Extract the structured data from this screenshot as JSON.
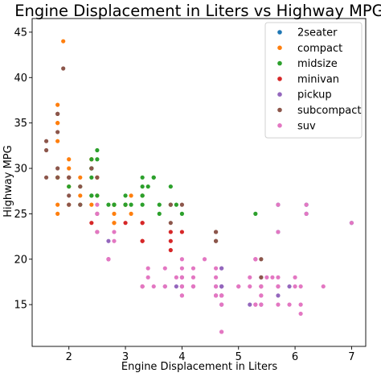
{
  "chart_data": {
    "type": "scatter",
    "title": "Engine Displacement in Liters vs Highway MPG",
    "xlabel": "Engine Displacement in Liters",
    "ylabel": "Highway MPG",
    "xlim": [
      1.35,
      7.25
    ],
    "ylim": [
      10.4,
      46.5
    ],
    "xticks": [
      "2",
      "3",
      "4",
      "5",
      "6",
      "7"
    ],
    "xtick_values": [
      2,
      3,
      4,
      5,
      6,
      7
    ],
    "yticks": [
      "15",
      "20",
      "25",
      "30",
      "35",
      "40",
      "45"
    ],
    "ytick_values": [
      15,
      20,
      25,
      30,
      35,
      40,
      45
    ],
    "grid": false,
    "legend_position": "top-right",
    "series": [
      {
        "name": "2seater",
        "color": "#1f77b4",
        "points": [
          [
            5.7,
            26
          ],
          [
            5.7,
            23
          ],
          [
            6.2,
            26
          ],
          [
            6.2,
            25
          ],
          [
            7.0,
            24
          ]
        ]
      },
      {
        "name": "compact",
        "color": "#ff7f0e",
        "points": [
          [
            1.8,
            29
          ],
          [
            1.8,
            29
          ],
          [
            2.0,
            31
          ],
          [
            2.0,
            30
          ],
          [
            2.8,
            26
          ],
          [
            2.8,
            26
          ],
          [
            3.1,
            27
          ],
          [
            1.8,
            26
          ],
          [
            1.8,
            25
          ],
          [
            2.0,
            28
          ],
          [
            2.0,
            29
          ],
          [
            2.8,
            25
          ],
          [
            3.1,
            25
          ],
          [
            2.2,
            27
          ],
          [
            2.2,
            29
          ],
          [
            2.4,
            31
          ],
          [
            2.4,
            31
          ],
          [
            3.0,
            26
          ],
          [
            3.0,
            26
          ],
          [
            3.3,
            27
          ],
          [
            1.8,
            33
          ],
          [
            1.8,
            35
          ],
          [
            1.8,
            37
          ],
          [
            1.8,
            35
          ],
          [
            1.8,
            29
          ],
          [
            1.9,
            44
          ],
          [
            2.0,
            29
          ],
          [
            2.0,
            26
          ],
          [
            2.5,
            29
          ],
          [
            2.5,
            29
          ],
          [
            2.8,
            24
          ],
          [
            2.8,
            24
          ],
          [
            1.8,
            29
          ],
          [
            2.4,
            26
          ],
          [
            2.5,
            27
          ]
        ]
      },
      {
        "name": "midsize",
        "color": "#2ca02c",
        "points": [
          [
            2.4,
            27
          ],
          [
            2.4,
            30
          ],
          [
            3.1,
            26
          ],
          [
            3.5,
            29
          ],
          [
            3.6,
            26
          ],
          [
            2.4,
            30
          ],
          [
            3.0,
            26
          ],
          [
            3.3,
            29
          ],
          [
            3.3,
            26
          ],
          [
            3.3,
            27
          ],
          [
            3.3,
            28
          ],
          [
            3.8,
            26
          ],
          [
            4.0,
            25
          ],
          [
            3.8,
            28
          ],
          [
            5.3,
            25
          ],
          [
            2.4,
            27
          ],
          [
            2.4,
            31
          ],
          [
            2.5,
            32
          ],
          [
            2.5,
            27
          ],
          [
            3.3,
            27
          ],
          [
            2.2,
            26
          ],
          [
            2.2,
            28
          ],
          [
            2.4,
            30
          ],
          [
            2.4,
            30
          ],
          [
            3.0,
            27
          ],
          [
            3.0,
            26
          ],
          [
            3.5,
            29
          ],
          [
            1.8,
            29
          ],
          [
            2.0,
            28
          ],
          [
            2.8,
            26
          ],
          [
            2.8,
            26
          ],
          [
            3.6,
            25
          ],
          [
            2.7,
            26
          ],
          [
            3.9,
            26
          ],
          [
            3.4,
            28
          ],
          [
            2.5,
            31
          ],
          [
            2.4,
            29
          ]
        ]
      },
      {
        "name": "minivan",
        "color": "#d62728",
        "points": [
          [
            2.4,
            24
          ],
          [
            3.0,
            24
          ],
          [
            3.3,
            22
          ],
          [
            3.3,
            22
          ],
          [
            3.3,
            24
          ],
          [
            3.3,
            24
          ],
          [
            3.3,
            17
          ],
          [
            3.8,
            22
          ],
          [
            3.8,
            21
          ],
          [
            3.8,
            23
          ],
          [
            4.0,
            23
          ]
        ]
      },
      {
        "name": "pickup",
        "color": "#9467bd",
        "points": [
          [
            2.7,
            22
          ],
          [
            2.7,
            20
          ],
          [
            3.7,
            17
          ],
          [
            3.9,
            17
          ],
          [
            4.7,
            17
          ],
          [
            4.7,
            16
          ],
          [
            5.2,
            15
          ],
          [
            5.7,
            16
          ],
          [
            5.9,
            17
          ],
          [
            4.7,
            19
          ],
          [
            4.7,
            17
          ],
          [
            4.6,
            17
          ],
          [
            4.6,
            16
          ],
          [
            5.4,
            15
          ],
          [
            5.4,
            18
          ],
          [
            4.0,
            17
          ],
          [
            4.2,
            17
          ],
          [
            4.7,
            19
          ],
          [
            4.7,
            17
          ],
          [
            4.0,
            18
          ],
          [
            4.0,
            17
          ],
          [
            4.7,
            17
          ],
          [
            4.7,
            15
          ],
          [
            4.7,
            16
          ]
        ]
      },
      {
        "name": "subcompact",
        "color": "#8c564b",
        "points": [
          [
            1.6,
            33
          ],
          [
            1.6,
            32
          ],
          [
            1.6,
            29
          ],
          [
            1.8,
            34
          ],
          [
            1.8,
            36
          ],
          [
            1.8,
            36
          ],
          [
            2.0,
            29
          ],
          [
            2.0,
            26
          ],
          [
            2.0,
            27
          ],
          [
            2.2,
            26
          ],
          [
            2.2,
            28
          ],
          [
            2.5,
            25
          ],
          [
            2.5,
            23
          ],
          [
            1.8,
            29
          ],
          [
            1.8,
            30
          ],
          [
            2.4,
            30
          ],
          [
            3.8,
            24
          ],
          [
            3.8,
            26
          ],
          [
            4.0,
            26
          ],
          [
            4.6,
            23
          ],
          [
            4.6,
            22
          ],
          [
            4.6,
            23
          ],
          [
            4.6,
            22
          ],
          [
            5.4,
            20
          ],
          [
            5.4,
            18
          ],
          [
            5.4,
            17
          ],
          [
            1.9,
            41
          ],
          [
            2.0,
            29
          ],
          [
            2.5,
            29
          ]
        ]
      },
      {
        "name": "suv",
        "color": "#e377c2",
        "points": [
          [
            5.3,
            20
          ],
          [
            5.3,
            15
          ],
          [
            5.3,
            20
          ],
          [
            5.7,
            17
          ],
          [
            6.0,
            17
          ],
          [
            5.7,
            26
          ],
          [
            5.7,
            23
          ],
          [
            6.2,
            26
          ],
          [
            6.2,
            25
          ],
          [
            7.0,
            24
          ],
          [
            5.3,
            20
          ],
          [
            5.3,
            15
          ],
          [
            5.7,
            17
          ],
          [
            6.5,
            17
          ],
          [
            2.5,
            26
          ],
          [
            2.5,
            23
          ],
          [
            2.8,
            23
          ],
          [
            2.8,
            22
          ],
          [
            2.5,
            25
          ],
          [
            2.7,
            20
          ],
          [
            4.0,
            16
          ],
          [
            4.0,
            18
          ],
          [
            4.6,
            16
          ],
          [
            5.0,
            17
          ],
          [
            4.2,
            17
          ],
          [
            4.2,
            19
          ],
          [
            4.6,
            17
          ],
          [
            4.6,
            16
          ],
          [
            5.4,
            17
          ],
          [
            5.4,
            16
          ],
          [
            2.7,
            20
          ],
          [
            3.7,
            19
          ],
          [
            4.0,
            18
          ],
          [
            4.7,
            16
          ],
          [
            4.7,
            16
          ],
          [
            5.7,
            18
          ],
          [
            6.1,
            15
          ],
          [
            6.1,
            14
          ],
          [
            3.4,
            19
          ],
          [
            3.4,
            18
          ],
          [
            4.0,
            17
          ],
          [
            4.0,
            16
          ],
          [
            5.4,
            15
          ],
          [
            3.5,
            17
          ],
          [
            3.7,
            17
          ],
          [
            4.7,
            15
          ],
          [
            5.4,
            17
          ],
          [
            5.5,
            18
          ],
          [
            3.3,
            17
          ],
          [
            5.9,
            15
          ],
          [
            4.7,
            12
          ],
          [
            4.7,
            12
          ],
          [
            4.7,
            16
          ],
          [
            5.2,
            17
          ],
          [
            5.7,
            15
          ],
          [
            6.1,
            17
          ],
          [
            4.0,
            19
          ],
          [
            4.0,
            20
          ],
          [
            4.2,
            18
          ],
          [
            4.6,
            19
          ],
          [
            5.4,
            17
          ],
          [
            4.2,
            17
          ],
          [
            3.3,
            17
          ],
          [
            3.9,
            18
          ],
          [
            4.4,
            20
          ],
          [
            5.0,
            17
          ],
          [
            5.2,
            18
          ],
          [
            5.6,
            18
          ],
          [
            6.0,
            18
          ],
          [
            4.0,
            17
          ],
          [
            4.6,
            18
          ],
          [
            5.4,
            16
          ],
          [
            5.7,
            17
          ]
        ]
      }
    ]
  }
}
